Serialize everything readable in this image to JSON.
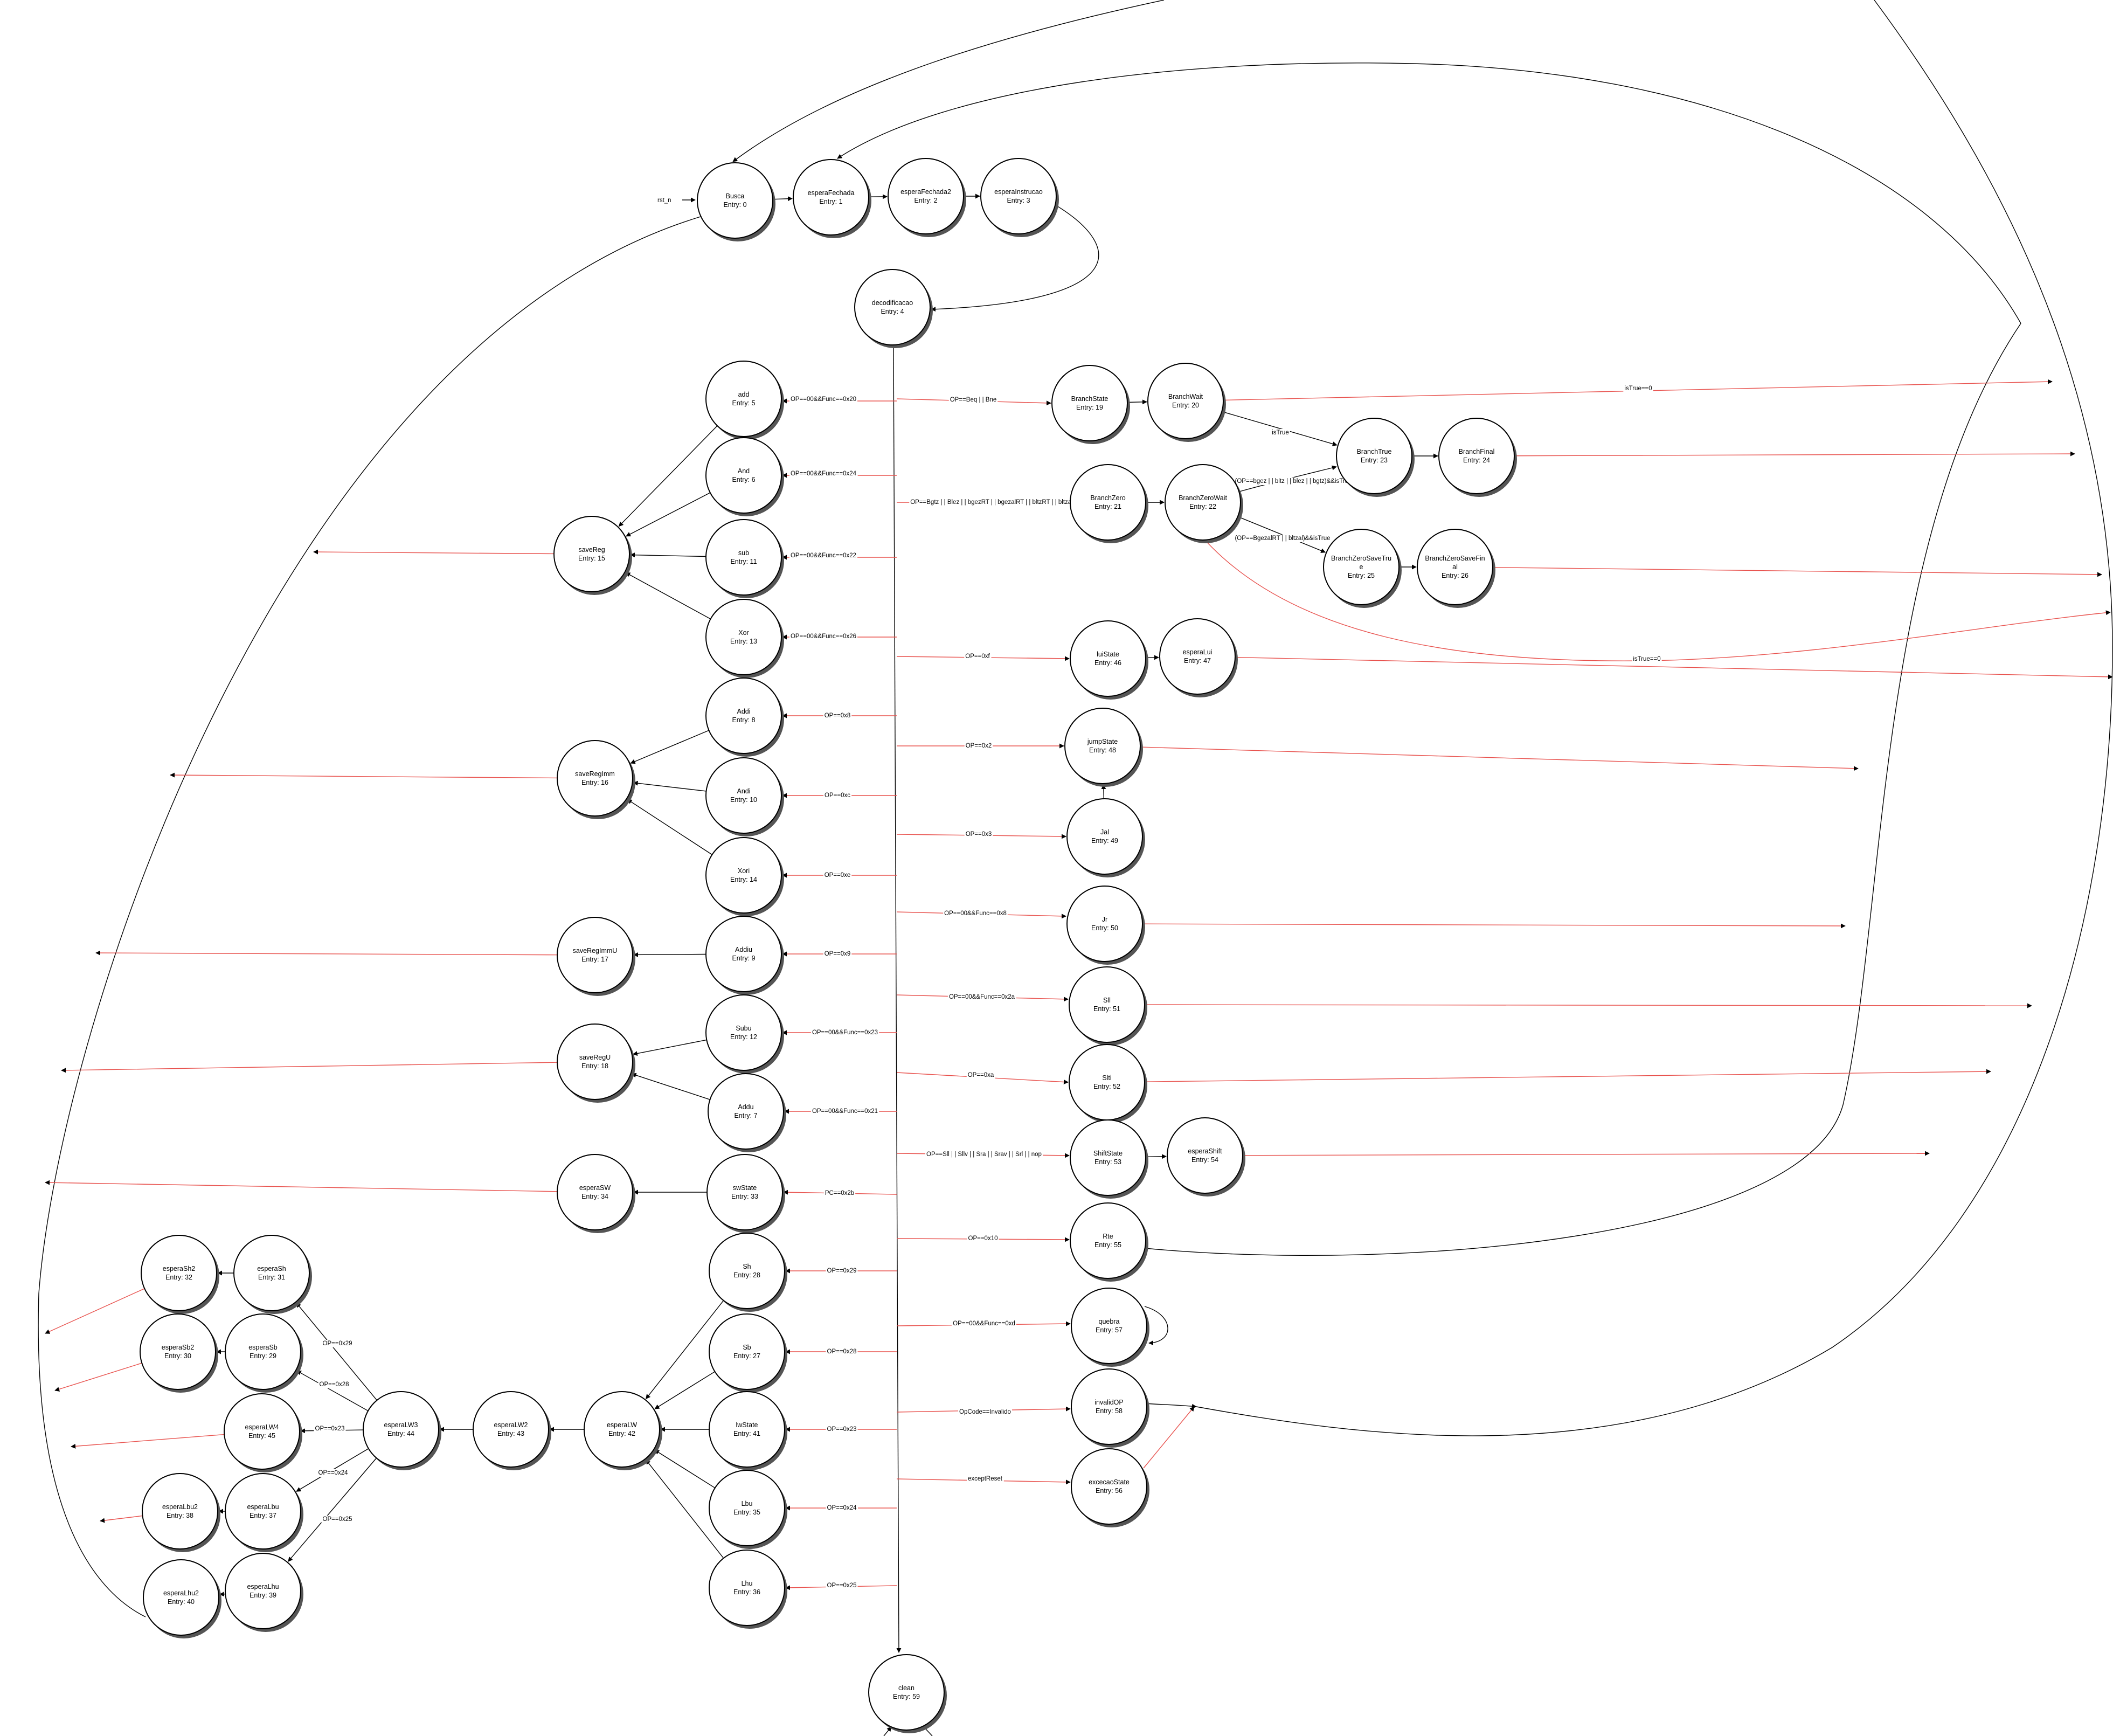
{
  "nodes": [
    {
      "id": "Busca",
      "name": "Busca",
      "entry": "Entry: 0"
    },
    {
      "id": "esperaFechada",
      "name": "esperaFechada",
      "entry": "Entry: 1"
    },
    {
      "id": "esperaFechada2",
      "name": "esperaFechada2",
      "entry": "Entry: 2"
    },
    {
      "id": "esperaInstrucao",
      "name": "esperaInstrucao",
      "entry": "Entry: 3"
    },
    {
      "id": "decodificacao",
      "name": "decodificacao",
      "entry": "Entry: 4"
    },
    {
      "id": "add",
      "name": "add",
      "entry": "Entry: 5"
    },
    {
      "id": "And",
      "name": "And",
      "entry": "Entry: 6"
    },
    {
      "id": "sub",
      "name": "sub",
      "entry": "Entry: 11"
    },
    {
      "id": "Xor",
      "name": "Xor",
      "entry": "Entry: 13"
    },
    {
      "id": "saveReg",
      "name": "saveReg",
      "entry": "Entry: 15"
    },
    {
      "id": "Addi",
      "name": "Addi",
      "entry": "Entry: 8"
    },
    {
      "id": "Andi",
      "name": "Andi",
      "entry": "Entry: 10"
    },
    {
      "id": "Xori",
      "name": "Xori",
      "entry": "Entry: 14"
    },
    {
      "id": "saveRegImm",
      "name": "saveRegImm",
      "entry": "Entry: 16"
    },
    {
      "id": "Addiu",
      "name": "Addiu",
      "entry": "Entry: 9"
    },
    {
      "id": "saveRegImmU",
      "name": "saveRegImmU",
      "entry": "Entry: 17"
    },
    {
      "id": "Subu",
      "name": "Subu",
      "entry": "Entry: 12"
    },
    {
      "id": "Addu",
      "name": "Addu",
      "entry": "Entry: 7"
    },
    {
      "id": "saveRegU",
      "name": "saveRegU",
      "entry": "Entry: 18"
    },
    {
      "id": "swState",
      "name": "swState",
      "entry": "Entry: 33"
    },
    {
      "id": "esperaSW",
      "name": "esperaSW",
      "entry": "Entry: 34"
    },
    {
      "id": "Sh",
      "name": "Sh",
      "entry": "Entry: 28"
    },
    {
      "id": "Sb",
      "name": "Sb",
      "entry": "Entry: 27"
    },
    {
      "id": "lwState",
      "name": "lwState",
      "entry": "Entry: 41"
    },
    {
      "id": "Lbu",
      "name": "Lbu",
      "entry": "Entry: 35"
    },
    {
      "id": "Lhu",
      "name": "Lhu",
      "entry": "Entry: 36"
    },
    {
      "id": "esperaLW",
      "name": "esperaLW",
      "entry": "Entry: 42"
    },
    {
      "id": "esperaLW2",
      "name": "esperaLW2",
      "entry": "Entry: 43"
    },
    {
      "id": "esperaLW3",
      "name": "esperaLW3",
      "entry": "Entry: 44"
    },
    {
      "id": "esperaSh",
      "name": "esperaSh",
      "entry": "Entry: 31"
    },
    {
      "id": "esperaSh2",
      "name": "esperaSh2",
      "entry": "Entry: 32"
    },
    {
      "id": "esperaSb",
      "name": "esperaSb",
      "entry": "Entry: 29"
    },
    {
      "id": "esperaSb2",
      "name": "esperaSb2",
      "entry": "Entry: 30"
    },
    {
      "id": "esperaLW4",
      "name": "esperaLW4",
      "entry": "Entry: 45"
    },
    {
      "id": "esperaLbu",
      "name": "esperaLbu",
      "entry": "Entry: 37"
    },
    {
      "id": "esperaLbu2",
      "name": "esperaLbu2",
      "entry": "Entry: 38"
    },
    {
      "id": "esperaLhu",
      "name": "esperaLhu",
      "entry": "Entry: 39"
    },
    {
      "id": "esperaLhu2",
      "name": "esperaLhu2",
      "entry": "Entry: 40"
    },
    {
      "id": "BranchState",
      "name": "BranchState",
      "entry": "Entry: 19"
    },
    {
      "id": "BranchWait",
      "name": "BranchWait",
      "entry": "Entry: 20"
    },
    {
      "id": "BranchTrue",
      "name": "BranchTrue",
      "entry": "Entry: 23"
    },
    {
      "id": "BranchFinal",
      "name": "BranchFinal",
      "entry": "Entry: 24"
    },
    {
      "id": "BranchZero",
      "name": "BranchZero",
      "entry": "Entry: 21"
    },
    {
      "id": "BranchZeroWait",
      "name": "BranchZeroWait",
      "entry": "Entry: 22"
    },
    {
      "id": "BranchZeroSaveTrue",
      "name": "BranchZeroSaveTru\ne",
      "entry": "Entry: 25"
    },
    {
      "id": "BranchZeroSaveFinal",
      "name": "BranchZeroSaveFin\nal",
      "entry": "Entry: 26"
    },
    {
      "id": "luiState",
      "name": "luiState",
      "entry": "Entry: 46"
    },
    {
      "id": "esperaLui",
      "name": "esperaLui",
      "entry": "Entry: 47"
    },
    {
      "id": "jumpState",
      "name": "jumpState",
      "entry": "Entry: 48"
    },
    {
      "id": "Jal",
      "name": "Jal",
      "entry": "Entry: 49"
    },
    {
      "id": "Jr",
      "name": "Jr",
      "entry": "Entry: 50"
    },
    {
      "id": "Sll",
      "name": "Sll",
      "entry": "Entry: 51"
    },
    {
      "id": "Slti",
      "name": "Slti",
      "entry": "Entry: 52"
    },
    {
      "id": "ShiftState",
      "name": "ShiftState",
      "entry": "Entry: 53"
    },
    {
      "id": "esperaShift",
      "name": "esperaShift",
      "entry": "Entry: 54"
    },
    {
      "id": "Rte",
      "name": "Rte",
      "entry": "Entry: 55"
    },
    {
      "id": "quebra",
      "name": "quebra",
      "entry": "Entry: 57"
    },
    {
      "id": "invalidOP",
      "name": "invalidOP",
      "entry": "Entry: 58"
    },
    {
      "id": "excecaoState",
      "name": "excecaoState",
      "entry": "Entry: 56"
    },
    {
      "id": "clean",
      "name": "clean",
      "entry": "Entry: 59"
    }
  ],
  "edge_labels": {
    "rst_n": "rst_n",
    "add": "OP==00&&Func==0x20",
    "And": "OP==00&&Func==0x24",
    "sub": "OP==00&&Func==0x22",
    "Xor": "OP==00&&Func==0x26",
    "Addi": "OP==0x8",
    "Andi": "OP==0xc",
    "Xori": "OP==0xe",
    "Addiu": "OP==0x9",
    "Subu": "OP==00&&Func==0x23",
    "Addu": "OP==00&&Func==0x21",
    "sw": "PC==0x2b",
    "Sh": "OP==0x29",
    "Sb": "OP==0x28",
    "lw": "OP==0x23",
    "Lbu": "OP==0x24",
    "Lhu": "OP==0x25",
    "lw3_Sh": "OP==0x29",
    "lw3_Sb": "OP==0x28",
    "lw3_LW4": "OP==0x23",
    "lw3_Lbu": "OP==0x24",
    "lw3_Lhu": "OP==0x25",
    "Branch": "OP==Beq | | Bne",
    "BranchZero": "OP==Bgtz | | Blez | | bgezRT | | bgezalRT | | bltzRT | | bltzal",
    "isTrue0_top": "isTrue==0",
    "isTrue": "isTrue",
    "bz_true": "(OP==bgez | | bltz | | blez | | bgtz)&&isTrue",
    "bz_saveTrue": "(OP==BgezalRT | | bltzal)&&isTrue",
    "isTrue0_mid": "isTrue==0",
    "Lui": "OP==0xf",
    "Jump": "OP==0x2",
    "Jal": "OP==0x3",
    "Jr": "OP==00&&Func==0x8",
    "Sll": "OP==00&&Func==0x2a",
    "Slti": "OP==0xa",
    "Shift": "OP==Sll | | Sllv | | Sra | | Srav | | Srl | | nop",
    "Rte": "OP==0x10",
    "quebra": "OP==00&&Func==0xd",
    "invalid": "OpCode==Invalido",
    "except": "exceptReset"
  },
  "colors": {
    "node_stroke": "#000000",
    "node_fill": "#ffffff",
    "node_shadow": "#555555",
    "edge_black": "#000000",
    "edge_red": "#e8534f"
  }
}
